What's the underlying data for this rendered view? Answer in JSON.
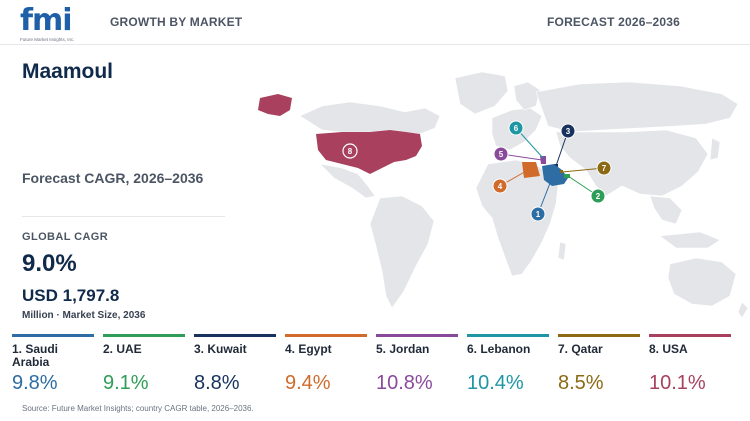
{
  "header": {
    "logo_text": "fmi",
    "logo_sub": "Future Market Insights, Inc.",
    "left": "GROWTH BY MARKET",
    "right": "FORECAST 2026–2036"
  },
  "title": "Maamoul",
  "subtitle": "Forecast CAGR, 2026–2036",
  "global": {
    "label": "GLOBAL CAGR",
    "cagr": "9.0%",
    "market_size": "USD 1,797.8",
    "market_size_label": "Million · Market Size, 2036"
  },
  "chart_data": {
    "type": "table",
    "title": "Maamoul",
    "subtitle": "Forecast CAGR, 2026–2036",
    "columns": [
      "Country",
      "CAGR"
    ],
    "rows": [
      {
        "rank": "1",
        "country": "Saudi Arabia",
        "label": "1. Saudi Arabia",
        "cagr": 9.8,
        "display": "9.8%",
        "color": "#2e6da4"
      },
      {
        "rank": "2",
        "country": "UAE",
        "label": "2. UAE",
        "cagr": 9.1,
        "display": "9.1%",
        "color": "#2e9d57"
      },
      {
        "rank": "3",
        "country": "Kuwait",
        "label": "3. Kuwait",
        "cagr": 8.8,
        "display": "8.8%",
        "color": "#17325c"
      },
      {
        "rank": "4",
        "country": "Egypt",
        "label": "4. Egypt",
        "cagr": 9.4,
        "display": "9.4%",
        "color": "#d06b2c"
      },
      {
        "rank": "5",
        "country": "Jordan",
        "label": "5. Jordan",
        "cagr": 10.8,
        "display": "10.8%",
        "color": "#8a4a9c"
      },
      {
        "rank": "6",
        "country": "Lebanon",
        "label": "6. Lebanon",
        "cagr": 10.4,
        "display": "10.4%",
        "color": "#1f96a3"
      },
      {
        "rank": "7",
        "country": "Qatar",
        "label": "7. Qatar",
        "cagr": 8.5,
        "display": "8.5%",
        "color": "#8c6a14"
      },
      {
        "rank": "8",
        "country": "USA",
        "label": "8. USA",
        "cagr": 10.1,
        "display": "10.1%",
        "color": "#a8405e"
      }
    ]
  },
  "source": "Source: Future Market Insights; country CAGR table, 2026–2036."
}
